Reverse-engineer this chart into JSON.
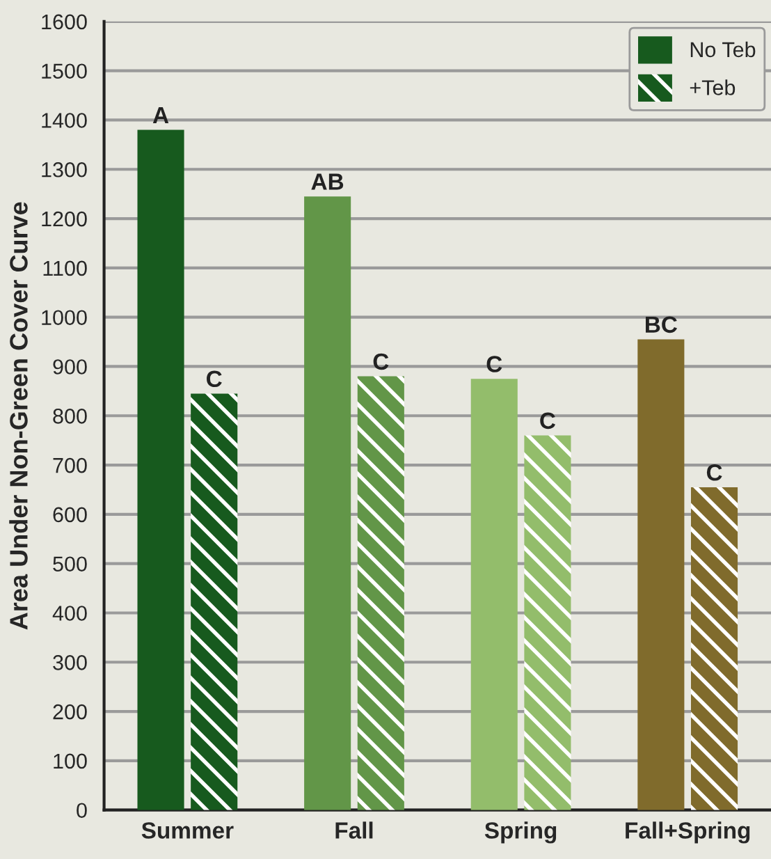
{
  "chart_data": {
    "type": "bar",
    "ylabel": "Area Under Non-Green Cover Curve",
    "categories": [
      "Summer",
      "Fall",
      "Spring",
      "Fall+Spring"
    ],
    "series": [
      {
        "name": "No Teb",
        "color": "#175a1e",
        "colors": [
          "#175a1e",
          "#629648",
          "#93bd6b",
          "#806b2c"
        ],
        "values": [
          1380,
          1245,
          875,
          955
        ],
        "value_labels": [
          "A",
          "AB",
          "C",
          "BC"
        ]
      },
      {
        "name": "+Teb",
        "color": "#175a1e",
        "colors": [
          "#175a1e",
          "#629648",
          "#93bd6b",
          "#806b2c"
        ],
        "values": [
          845,
          880,
          760,
          655
        ],
        "value_labels": [
          "C",
          "C",
          "C",
          "C"
        ]
      }
    ],
    "ylim": [
      0,
      1600
    ],
    "yticks": [
      0,
      100,
      200,
      300,
      400,
      500,
      600,
      700,
      800,
      900,
      1000,
      1100,
      1200,
      1300,
      1400,
      1500,
      1600
    ],
    "grid": "y",
    "legend": "top right"
  }
}
